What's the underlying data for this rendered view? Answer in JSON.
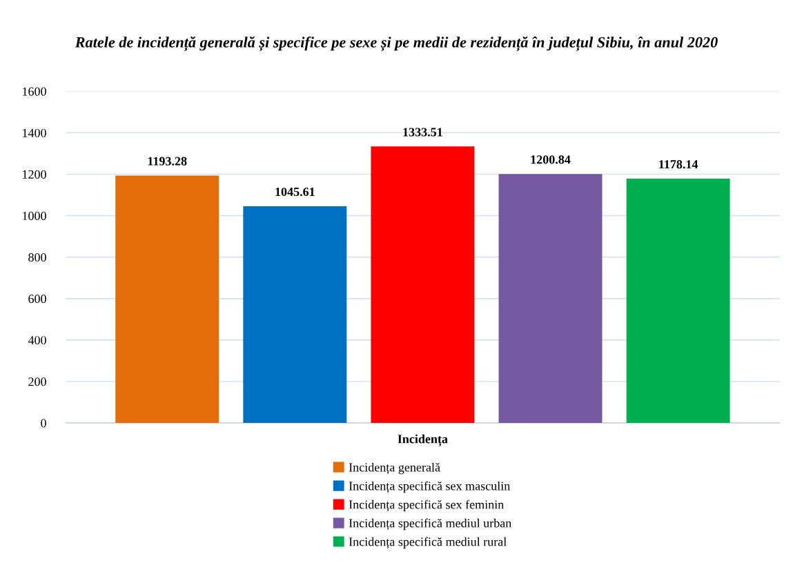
{
  "chart_data": {
    "type": "bar",
    "title": "Ratele de incidență generală și specifice pe sexe și pe medii de rezidență în județul Sibiu, în anul 2020",
    "categories": [
      "Incidența"
    ],
    "series": [
      {
        "name": "Incidența generală",
        "color": "#e46c0a",
        "values": [
          1193.28
        ]
      },
      {
        "name": "Incidența specifică sex masculin",
        "color": "#0070c0",
        "values": [
          1045.61
        ]
      },
      {
        "name": "Incidența specifică sex feminin",
        "color": "#ff0000",
        "values": [
          1333.51
        ]
      },
      {
        "name": "Incidența specifică mediul urban",
        "color": "#7459a0",
        "values": [
          1200.84
        ]
      },
      {
        "name": "Incidența specifică mediul rural",
        "color": "#00b050",
        "values": [
          1178.14
        ]
      }
    ],
    "ylim": [
      0,
      1600
    ],
    "yticks": [
      0,
      200,
      400,
      600,
      800,
      1000,
      1200,
      1400,
      1600
    ],
    "grid": "y",
    "legend": "bottom",
    "data_labels": true
  }
}
